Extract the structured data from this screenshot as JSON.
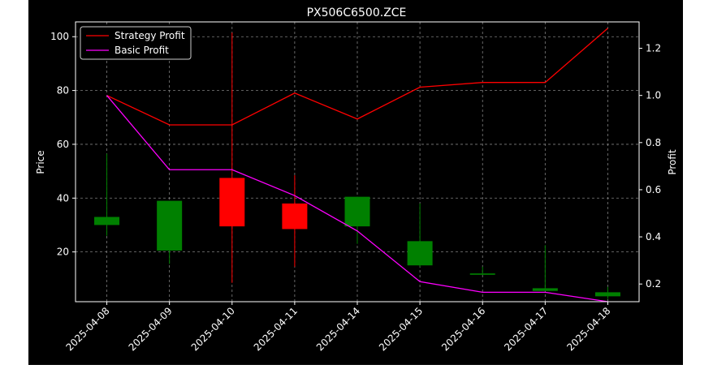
{
  "chart_data": {
    "type": "candlestick",
    "title": "PX506C6500.ZCE",
    "ylabel": "Price",
    "y2label": "Profit",
    "ylim": [
      1.5,
      105.5
    ],
    "y2lim": [
      0.125,
      1.312
    ],
    "yticks": [
      20,
      40,
      60,
      80,
      100
    ],
    "y2ticks": [
      "0.2",
      "0.4",
      "0.6",
      "0.8",
      "1.0",
      "1.2"
    ],
    "grid": true,
    "legend_position": "top-left",
    "categories": [
      "2025-04-08",
      "2025-04-09",
      "2025-04-10",
      "2025-04-11",
      "2025-04-14",
      "2025-04-15",
      "2025-04-16",
      "2025-04-17",
      "2025-04-18"
    ],
    "candles": [
      {
        "open": 30.0,
        "high": 56.5,
        "low": 26.0,
        "close": 33.0
      },
      {
        "open": 20.5,
        "high": 39.0,
        "low": 15.5,
        "close": 39.0
      },
      {
        "open": 47.5,
        "high": 101.5,
        "low": 8.5,
        "close": 29.5
      },
      {
        "open": 38.0,
        "high": 48.5,
        "low": 14.5,
        "close": 28.5
      },
      {
        "open": 29.5,
        "high": 40.5,
        "low": 23.0,
        "close": 40.5
      },
      {
        "open": 15.0,
        "high": 38.0,
        "low": 14.5,
        "close": 24.0
      },
      {
        "open": 11.5,
        "high": 14.5,
        "low": 11.5,
        "close": 12.0
      },
      {
        "open": 5.5,
        "high": 22.5,
        "low": 5.5,
        "close": 6.5
      },
      {
        "open": 3.5,
        "high": 7.0,
        "low": 2.5,
        "close": 5.0
      }
    ],
    "series": [
      {
        "name": "Strategy Profit",
        "axis": "right",
        "color": "#ff0000",
        "values": [
          1.0,
          0.875,
          0.875,
          1.01,
          0.9,
          1.035,
          1.055,
          1.055,
          1.285
        ]
      },
      {
        "name": "Basic Profit",
        "axis": "right",
        "color": "#ff00ff",
        "values": [
          1.0,
          0.685,
          0.685,
          0.575,
          0.425,
          0.21,
          0.165,
          0.165,
          0.125
        ]
      }
    ],
    "up_color": "#008000",
    "down_color": "#ff0000"
  }
}
